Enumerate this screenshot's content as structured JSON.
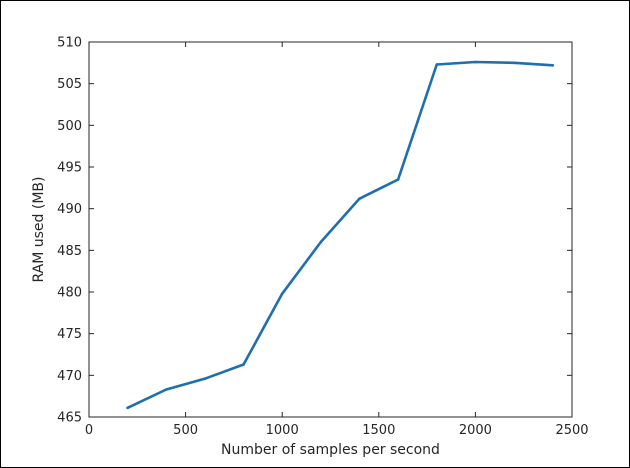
{
  "chart_data": {
    "type": "line",
    "title": "",
    "xlabel": "Number of samples per second",
    "ylabel": "RAM used (MB)",
    "xlim": [
      0,
      2500
    ],
    "ylim": [
      465,
      510
    ],
    "xticks": [
      0,
      500,
      1000,
      1500,
      2000,
      2500
    ],
    "yticks": [
      465,
      470,
      475,
      480,
      485,
      490,
      495,
      500,
      505,
      510
    ],
    "grid": false,
    "legend": "none",
    "series": [
      {
        "color": "#1f6fae",
        "x": [
          200,
          400,
          600,
          800,
          1000,
          1200,
          1400,
          1600,
          1800,
          2000,
          2200,
          2400
        ],
        "y": [
          466.1,
          468.3,
          469.6,
          471.3,
          479.8,
          486.0,
          491.2,
          493.5,
          507.3,
          507.6,
          507.5,
          507.2
        ]
      }
    ]
  },
  "colors": {
    "axis": "#262626",
    "background": "#ffffff",
    "frame": "#000000"
  }
}
